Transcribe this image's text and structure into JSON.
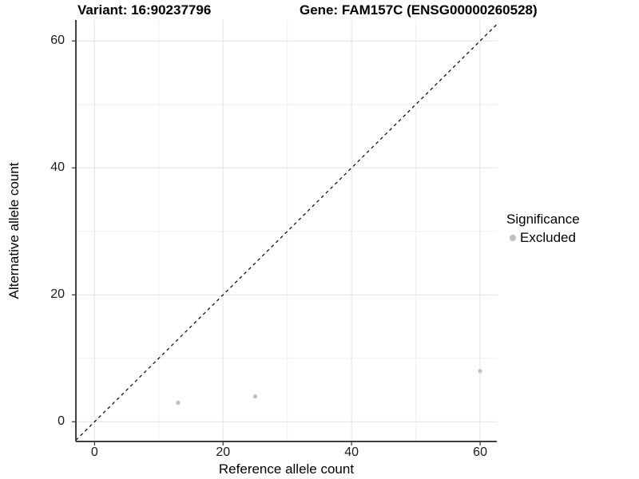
{
  "chart_data": {
    "type": "scatter",
    "titles": {
      "variant": "Variant: 16:90237796",
      "gene": "Gene: FAM157C (ENSG00000260528)"
    },
    "xlabel": "Reference allele count",
    "ylabel": "Alternative allele count",
    "xlim": [
      -2.9,
      62.6
    ],
    "ylim": [
      -3.1,
      63.3
    ],
    "x_ticks": {
      "major": [
        0,
        20,
        40,
        60
      ],
      "minor": [
        10,
        30,
        50
      ]
    },
    "y_ticks": {
      "major": [
        0,
        20,
        40,
        60
      ],
      "minor": [
        10,
        30,
        50
      ]
    },
    "grid": {
      "major_color": "#E2E2E2",
      "minor_color": "#EFEFEF",
      "background": "#FFFFFF"
    },
    "axis_color": "#404040",
    "tick_mark_color": "#333333",
    "identity_line": {
      "style": "dashed",
      "slope": 1,
      "intercept": 0,
      "color": "#000000"
    },
    "series": [
      {
        "name": "Excluded",
        "color": "#BEBEBE",
        "points": [
          {
            "x": 13,
            "y": 3
          },
          {
            "x": 25,
            "y": 4
          },
          {
            "x": 60,
            "y": 8
          }
        ]
      }
    ],
    "legend": {
      "title": "Significance",
      "position": "right",
      "entries": [
        {
          "label": "Excluded",
          "color": "#BEBEBE",
          "marker": "circle"
        }
      ]
    }
  }
}
